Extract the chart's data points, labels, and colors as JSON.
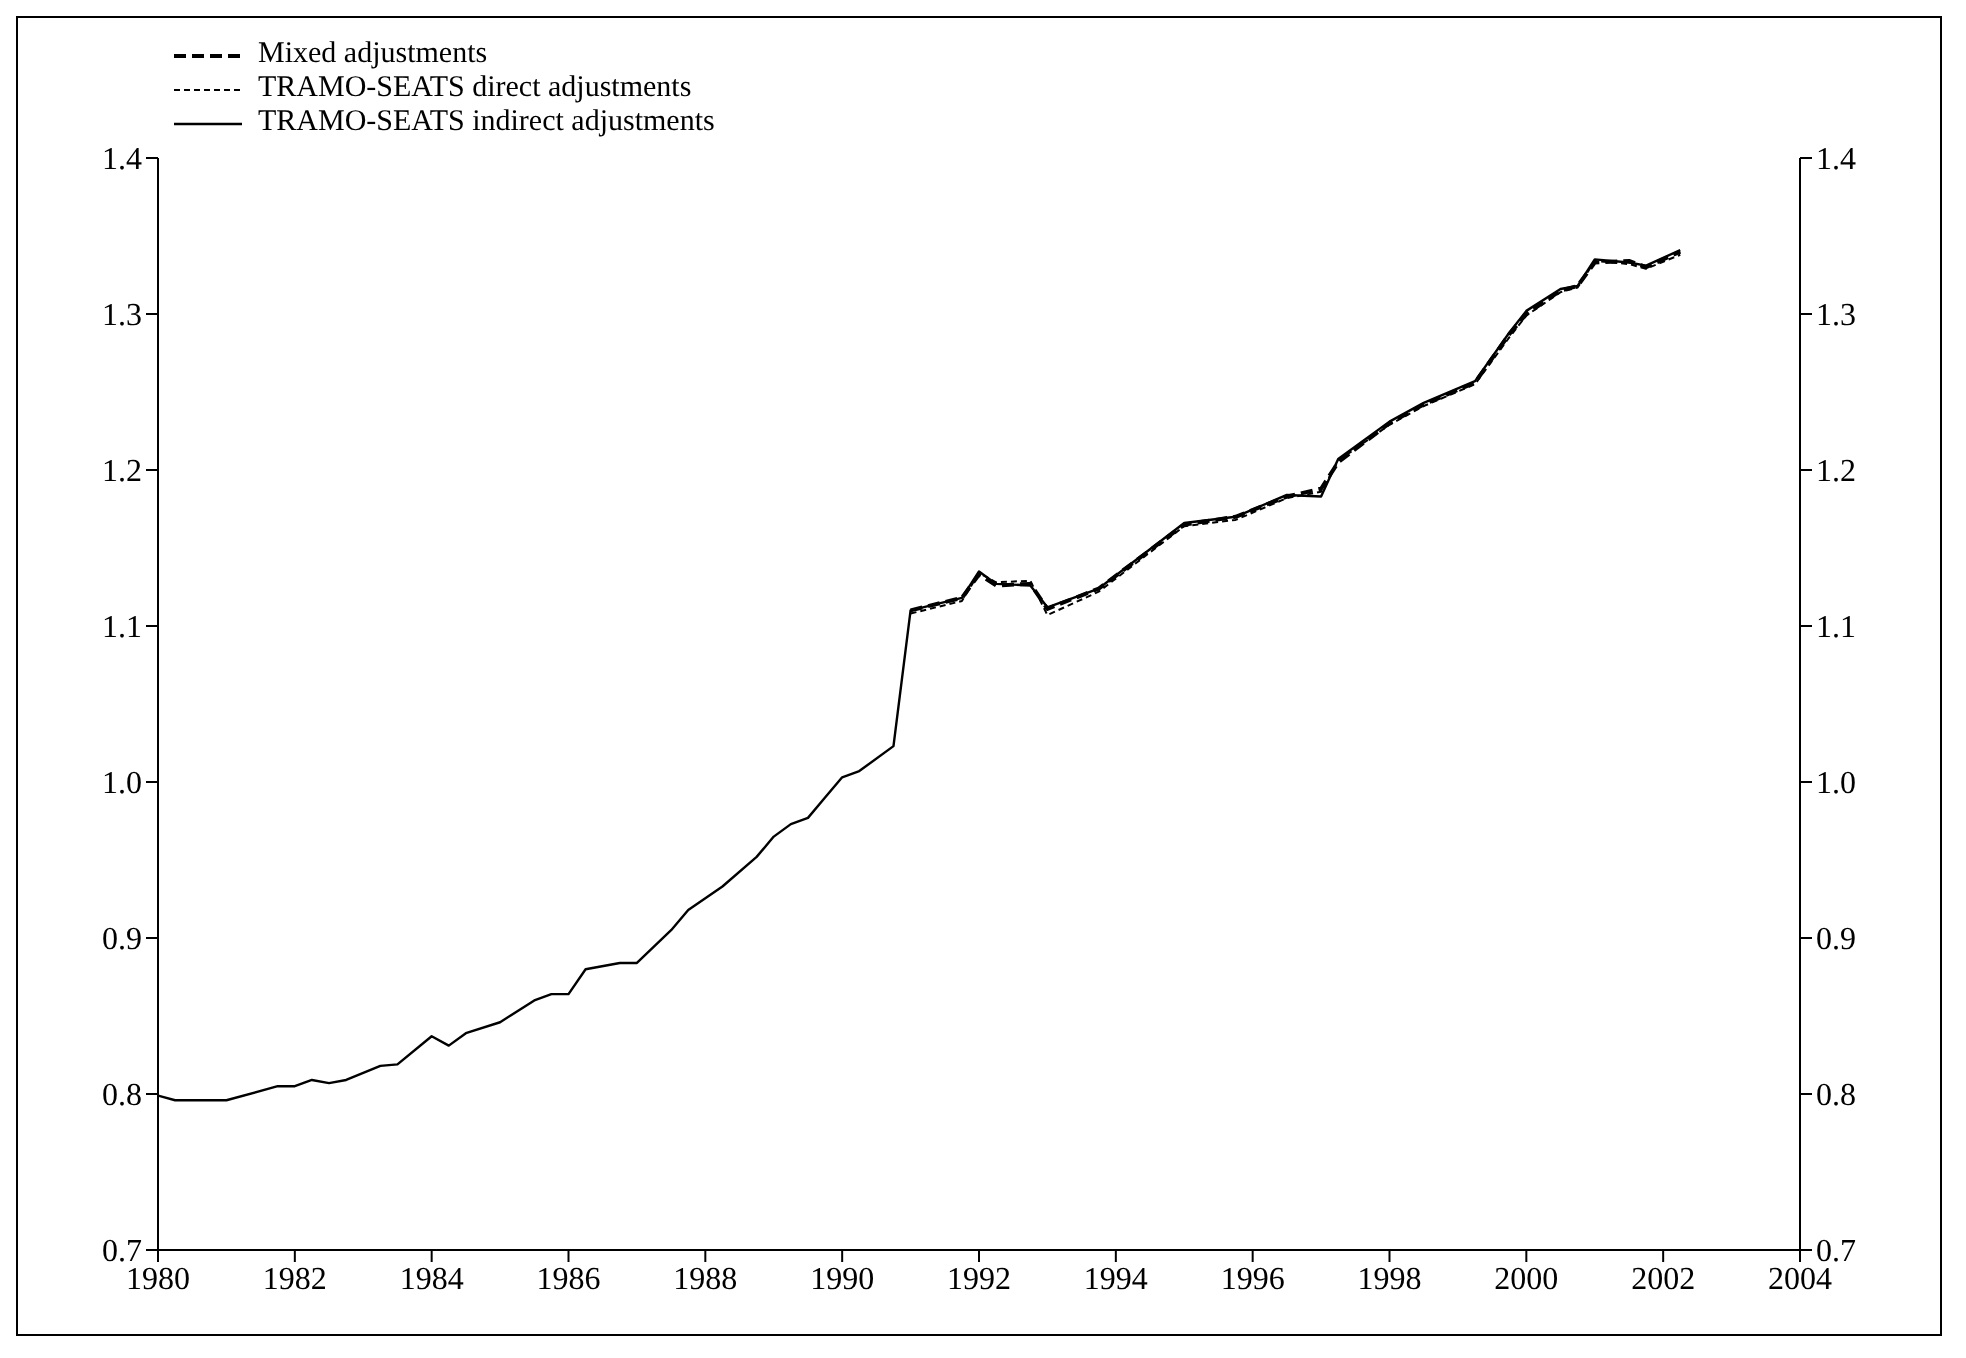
{
  "chart_data": {
    "type": "line",
    "xlim": [
      1980,
      2004
    ],
    "xticks": [
      1980,
      1982,
      1984,
      1986,
      1988,
      1990,
      1992,
      1994,
      1996,
      1998,
      2000,
      2002,
      2004
    ],
    "ylim": [
      0.7,
      1.4
    ],
    "yticks": [
      0.7,
      0.8,
      0.9,
      {
        "value": 1,
        "label": "1.0"
      },
      1.1,
      1.2,
      1.3,
      1.4
    ],
    "y2lim": [
      0.7,
      1.4
    ],
    "y2ticks": [
      0.7,
      0.8,
      0.9,
      {
        "value": 1,
        "label": "1.0"
      },
      1.1,
      1.2,
      1.3,
      1.4
    ],
    "legend": "top left",
    "marker": "none",
    "series": [
      {
        "name": "Mixed adjustments",
        "color": "#000000",
        "line_style": "dashed",
        "x": [
          1991.0,
          1991.75,
          1992.0,
          1992.25,
          1992.75,
          1993.0,
          1993.75,
          1995.0,
          1995.75,
          1996.5,
          1997.0,
          1997.25,
          1998.0,
          1998.5,
          1999.25,
          1999.75,
          2000.0,
          2000.5,
          2000.75,
          2001.0,
          2001.5,
          2001.75,
          2002.25
        ],
        "values": [
          1.11,
          1.118,
          1.133,
          1.126,
          1.127,
          1.111,
          1.124,
          1.165,
          1.17,
          1.183,
          1.188,
          1.205,
          1.23,
          1.242,
          1.256,
          1.287,
          1.3,
          1.315,
          1.318,
          1.333,
          1.334,
          1.33,
          1.34
        ]
      },
      {
        "name": "TRAMO-SEATS direct adjustments",
        "color": "#000000",
        "line_style": "dotted",
        "x": [
          1991.0,
          1991.75,
          1992.0,
          1992.25,
          1992.75,
          1993.0,
          1993.75,
          1995.0,
          1995.75,
          1996.5,
          1997.0,
          1997.25,
          1998.0,
          1998.5,
          1999.25,
          1999.75,
          2000.0,
          2000.5,
          2000.75,
          2001.0,
          2001.5,
          2001.75,
          2002.25
        ],
        "values": [
          1.108,
          1.116,
          1.134,
          1.128,
          1.129,
          1.107,
          1.122,
          1.164,
          1.168,
          1.182,
          1.186,
          1.206,
          1.229,
          1.241,
          1.255,
          1.285,
          1.299,
          1.314,
          1.317,
          1.334,
          1.332,
          1.329,
          1.338
        ]
      },
      {
        "name": "TRAMO-SEATS indirect adjustments",
        "color": "#000000",
        "line_style": "solid",
        "x": [
          1980.0,
          1980.25,
          1981.0,
          1981.75,
          1982.0,
          1982.25,
          1982.5,
          1982.75,
          1983.25,
          1983.5,
          1984.0,
          1984.25,
          1984.5,
          1985.0,
          1985.5,
          1985.75,
          1986.0,
          1986.25,
          1986.75,
          1987.0,
          1987.5,
          1987.75,
          1988.25,
          1988.75,
          1989.0,
          1989.25,
          1989.5,
          1989.75,
          1990.0,
          1990.25,
          1990.75,
          1991.0,
          1991.75,
          1992.0,
          1992.25,
          1992.75,
          1993.0,
          1993.75,
          1995.0,
          1995.75,
          1996.5,
          1997.0,
          1997.25,
          1998.0,
          1998.5,
          1999.25,
          1999.75,
          2000.0,
          2000.5,
          2000.75,
          2001.0,
          2001.5,
          2001.75,
          2002.25
        ],
        "values": [
          0.799,
          0.796,
          0.796,
          0.805,
          0.805,
          0.809,
          0.807,
          0.809,
          0.818,
          0.819,
          0.837,
          0.831,
          0.839,
          0.846,
          0.86,
          0.864,
          0.864,
          0.88,
          0.884,
          0.884,
          0.905,
          0.918,
          0.933,
          0.952,
          0.965,
          0.973,
          0.977,
          0.99,
          1.003,
          1.007,
          1.023,
          1.11,
          1.118,
          1.135,
          1.127,
          1.126,
          1.112,
          1.124,
          1.166,
          1.17,
          1.184,
          1.183,
          1.207,
          1.231,
          1.243,
          1.257,
          1.288,
          1.302,
          1.316,
          1.318,
          1.335,
          1.333,
          1.331,
          1.341
        ]
      }
    ]
  }
}
